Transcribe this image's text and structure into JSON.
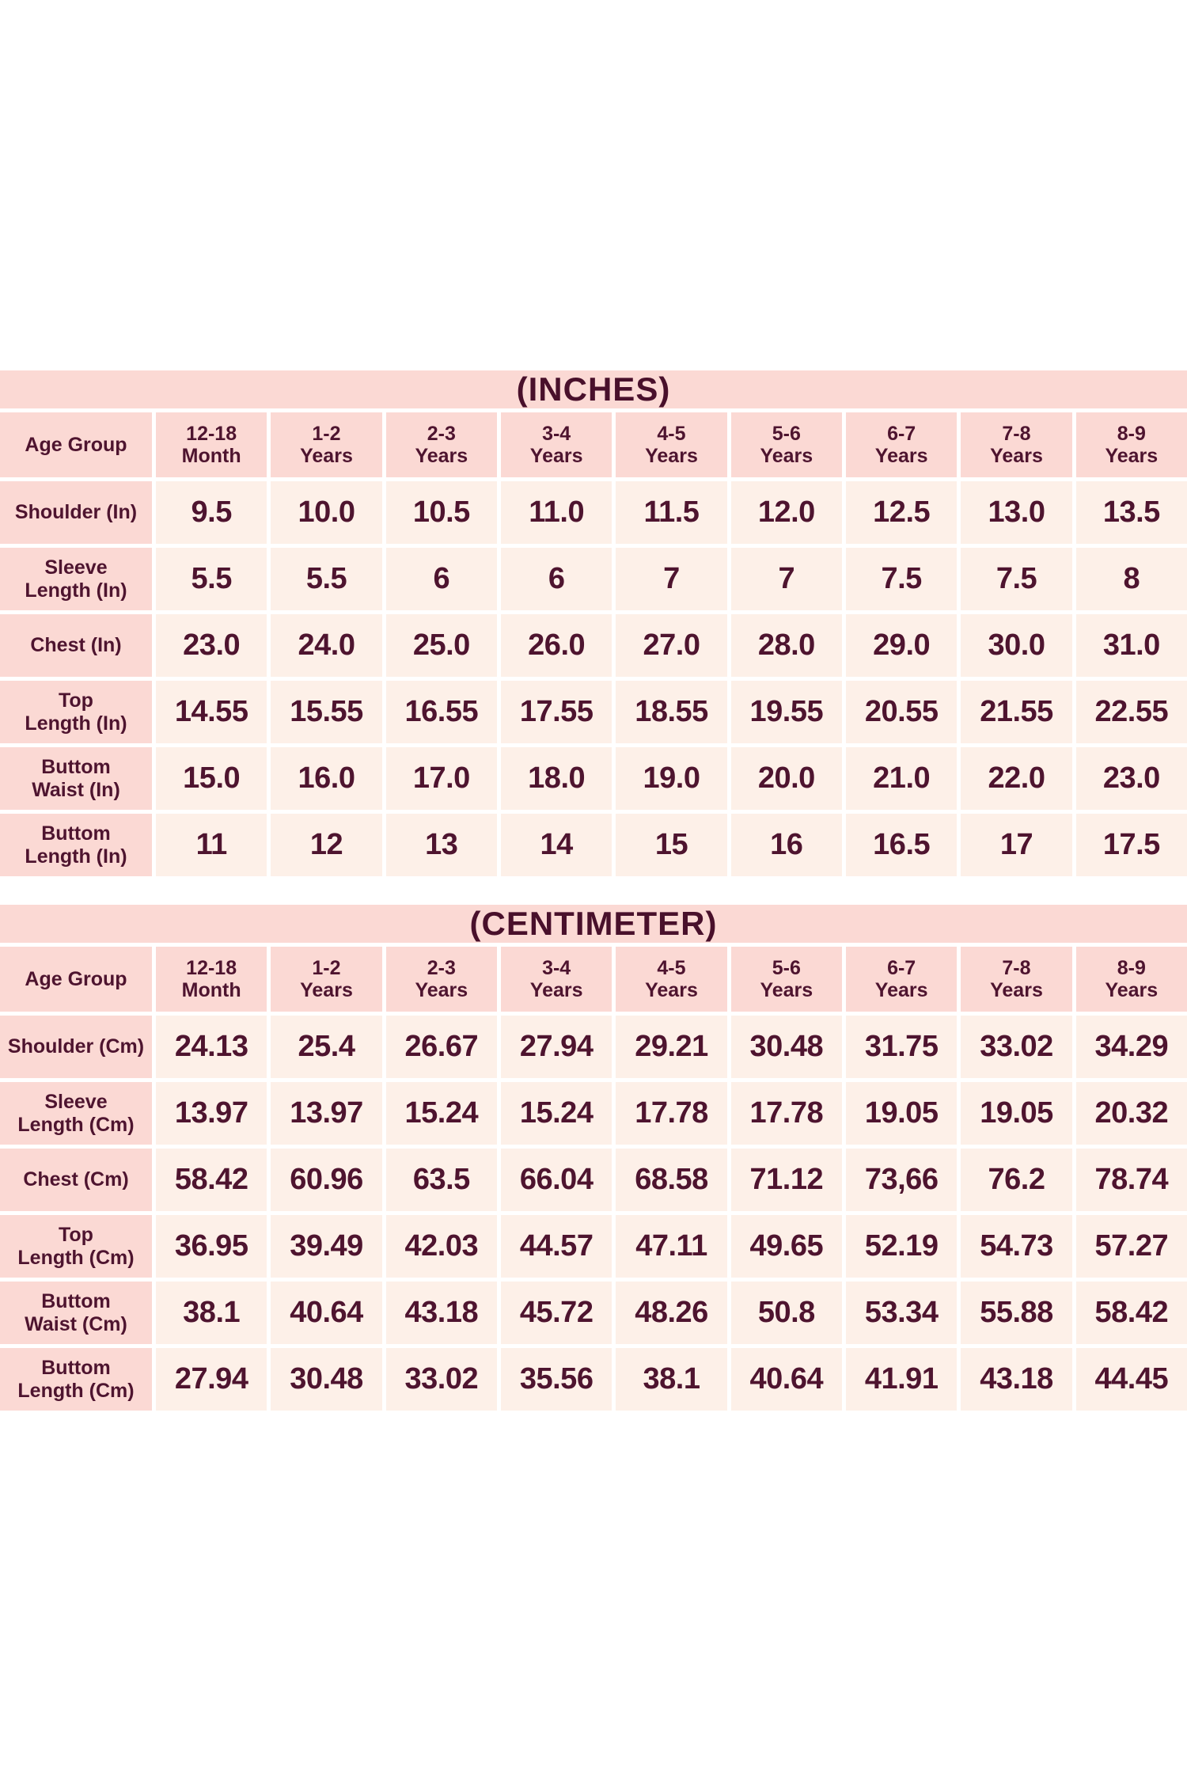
{
  "page": {
    "background": "#ffffff"
  },
  "colors": {
    "title_bar_pink": "#fbd9d4",
    "header_cell_pink": "#fbd9d4",
    "data_cell_cream": "#fdf0e8",
    "text_maroon": "#4e142f",
    "grid_gap_white": "#ffffff"
  },
  "chart_data": [
    {
      "type": "table",
      "title": "(INCHES)",
      "corner_label": "Age Group",
      "columns": [
        "12-18\nMonth",
        "1-2\nYears",
        "2-3\nYears",
        "3-4\nYears",
        "4-5\nYears",
        "5-6\nYears",
        "6-7\nYears",
        "7-8\nYears",
        "8-9\nYears"
      ],
      "rows": [
        {
          "label": "Shoulder (In)",
          "values": [
            "9.5",
            "10.0",
            "10.5",
            "11.0",
            "11.5",
            "12.0",
            "12.5",
            "13.0",
            "13.5"
          ]
        },
        {
          "label": "Sleeve\nLength (In)",
          "values": [
            "5.5",
            "5.5",
            "6",
            "6",
            "7",
            "7",
            "7.5",
            "7.5",
            "8"
          ]
        },
        {
          "label": "Chest (In)",
          "values": [
            "23.0",
            "24.0",
            "25.0",
            "26.0",
            "27.0",
            "28.0",
            "29.0",
            "30.0",
            "31.0"
          ]
        },
        {
          "label": "Top\nLength (In)",
          "values": [
            "14.55",
            "15.55",
            "16.55",
            "17.55",
            "18.55",
            "19.55",
            "20.55",
            "21.55",
            "22.55"
          ]
        },
        {
          "label": "Buttom\nWaist (In)",
          "values": [
            "15.0",
            "16.0",
            "17.0",
            "18.0",
            "19.0",
            "20.0",
            "21.0",
            "22.0",
            "23.0"
          ]
        },
        {
          "label": "Buttom\nLength (In)",
          "values": [
            "11",
            "12",
            "13",
            "14",
            "15",
            "16",
            "16.5",
            "17",
            "17.5"
          ]
        }
      ]
    },
    {
      "type": "table",
      "title": "(CENTIMETER)",
      "corner_label": "Age Group",
      "columns": [
        "12-18\nMonth",
        "1-2\nYears",
        "2-3\nYears",
        "3-4\nYears",
        "4-5\nYears",
        "5-6\nYears",
        "6-7\nYears",
        "7-8\nYears",
        "8-9\nYears"
      ],
      "rows": [
        {
          "label": "Shoulder (Cm)",
          "values": [
            "24.13",
            "25.4",
            "26.67",
            "27.94",
            "29.21",
            "30.48",
            "31.75",
            "33.02",
            "34.29"
          ]
        },
        {
          "label": "Sleeve\nLength (Cm)",
          "values": [
            "13.97",
            "13.97",
            "15.24",
            "15.24",
            "17.78",
            "17.78",
            "19.05",
            "19.05",
            "20.32"
          ]
        },
        {
          "label": "Chest (Cm)",
          "values": [
            "58.42",
            "60.96",
            "63.5",
            "66.04",
            "68.58",
            "71.12",
            "73,66",
            "76.2",
            "78.74"
          ]
        },
        {
          "label": "Top\nLength (Cm)",
          "values": [
            "36.95",
            "39.49",
            "42.03",
            "44.57",
            "47.11",
            "49.65",
            "52.19",
            "54.73",
            "57.27"
          ]
        },
        {
          "label": "Buttom\nWaist (Cm)",
          "values": [
            "38.1",
            "40.64",
            "43.18",
            "45.72",
            "48.26",
            "50.8",
            "53.34",
            "55.88",
            "58.42"
          ]
        },
        {
          "label": "Buttom\nLength (Cm)",
          "values": [
            "27.94",
            "30.48",
            "33.02",
            "35.56",
            "38.1",
            "40.64",
            "41.91",
            "43.18",
            "44.45"
          ]
        }
      ]
    }
  ]
}
